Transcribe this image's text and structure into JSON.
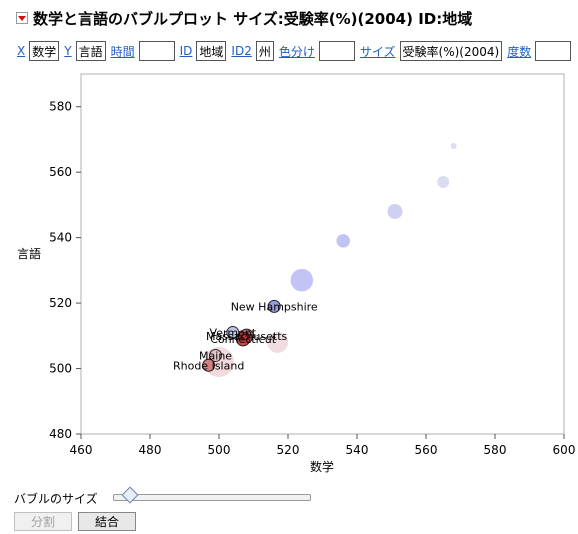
{
  "title": "数学と言語のバブルプロット サイズ:受験率(%)(2004)  ID:地域",
  "roles": [
    {
      "link": "X",
      "value": "数学"
    },
    {
      "link": "Y",
      "value": "言語"
    },
    {
      "link": "時間",
      "value": ""
    },
    {
      "link": "ID",
      "value": "地域"
    },
    {
      "link": "ID2",
      "value": "州"
    },
    {
      "link": "色分け",
      "value": ""
    },
    {
      "link": "サイズ",
      "value": "受験率(%)(2004)"
    },
    {
      "link": "度数",
      "value": ""
    }
  ],
  "controls": {
    "bubble_size_label": "バブルのサイズ",
    "bubble_size_level": 0.08,
    "split_label": "分割",
    "combine_label": "結合"
  },
  "chart_data": {
    "type": "scatter",
    "xlabel": "数学",
    "ylabel": "言語",
    "xlim": [
      460,
      600
    ],
    "ylim": [
      480,
      590
    ],
    "xticks": [
      460,
      480,
      500,
      520,
      540,
      560,
      580,
      600
    ],
    "yticks": [
      480,
      500,
      520,
      540,
      560,
      580
    ],
    "grid": false,
    "points": [
      {
        "label": "",
        "x": 568,
        "y": 568,
        "size": 0.2,
        "color": "#d6d6ee",
        "border": false
      },
      {
        "label": "",
        "x": 565,
        "y": 557,
        "size": 0.4,
        "color": "#d6d6ee",
        "border": false
      },
      {
        "label": "",
        "x": 551,
        "y": 548,
        "size": 0.5,
        "color": "#c8c8f0",
        "border": false
      },
      {
        "label": "",
        "x": 536,
        "y": 539,
        "size": 0.45,
        "color": "#b8b8f0",
        "border": false
      },
      {
        "label": "",
        "x": 524,
        "y": 527,
        "size": 0.75,
        "color": "#b8b8f5",
        "border": false
      },
      {
        "label": "New Hampshire",
        "x": 516,
        "y": 519,
        "size": 0.4,
        "color": "#8a8ad8",
        "border": true
      },
      {
        "label": "",
        "x": 517,
        "y": 508,
        "size": 0.7,
        "color": "#eed6dc",
        "border": false
      },
      {
        "label": "Massachusetts",
        "x": 508,
        "y": 510,
        "size": 0.45,
        "color": "#b85a5a",
        "border": true
      },
      {
        "label": "Vermont",
        "x": 504,
        "y": 511,
        "size": 0.4,
        "color": "#b8b8e0",
        "border": true
      },
      {
        "label": "Connecticut",
        "x": 507,
        "y": 509,
        "size": 0.45,
        "color": "#c02a2a",
        "border": true
      },
      {
        "label": "",
        "x": 500,
        "y": 502,
        "size": 1.0,
        "color": "#f0d4d8",
        "border": false
      },
      {
        "label": "Maine",
        "x": 499,
        "y": 504,
        "size": 0.4,
        "color": "#e0c0c8",
        "border": true
      },
      {
        "label": "Rhode Island",
        "x": 497,
        "y": 501,
        "size": 0.4,
        "color": "#d07070",
        "border": true
      }
    ]
  }
}
